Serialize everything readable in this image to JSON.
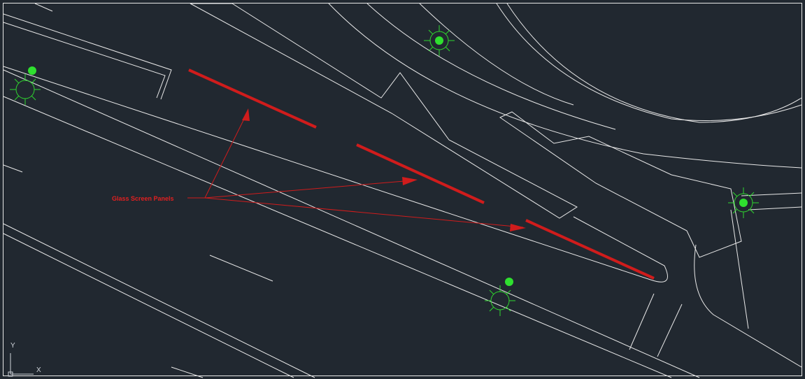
{
  "annotation": {
    "label": "Glass Screen Panels"
  },
  "ucs": {
    "y": "Y",
    "x": "X"
  }
}
